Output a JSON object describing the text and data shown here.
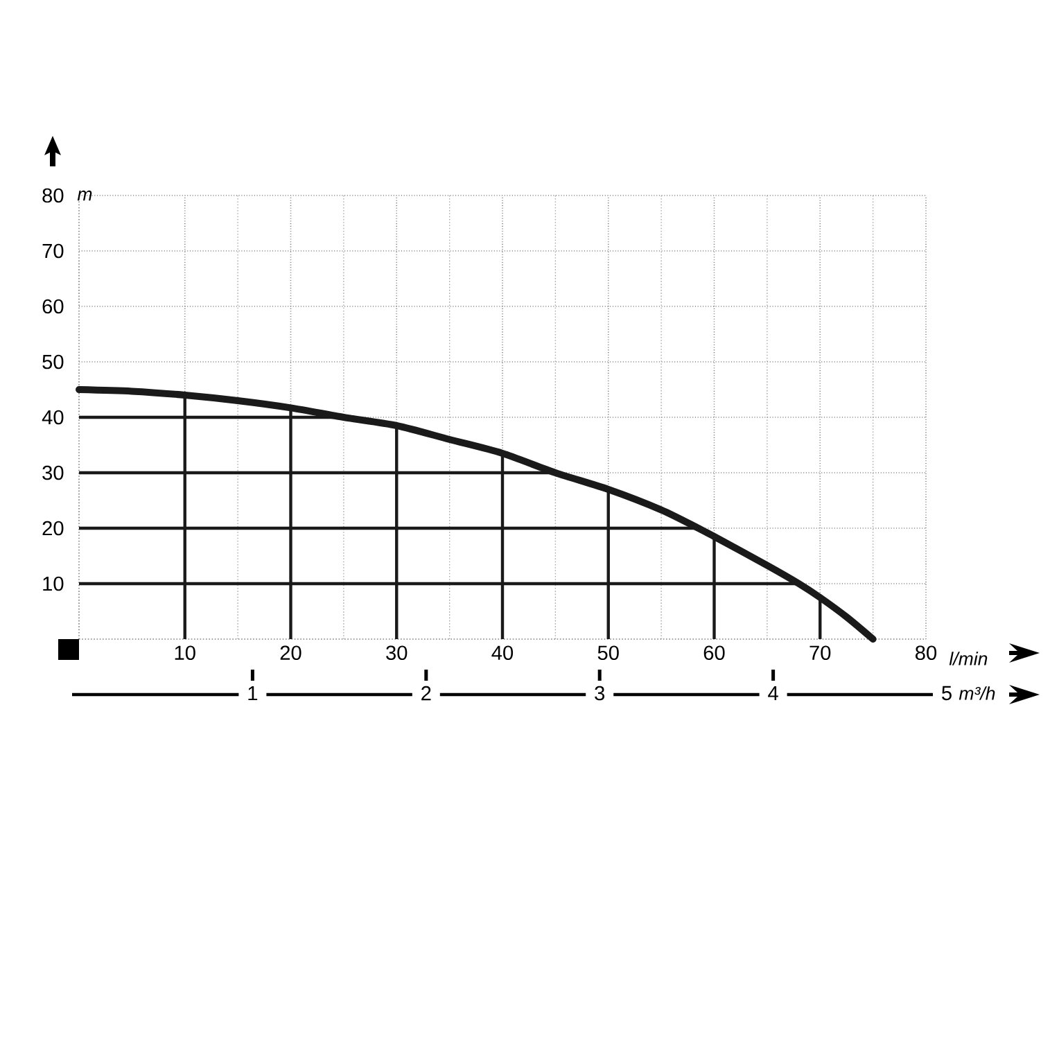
{
  "chart_data": {
    "type": "line",
    "xlabel": "l/min",
    "ylabel": "m",
    "x2label": "m³/h",
    "x": [
      0,
      5,
      10,
      15,
      20,
      25,
      30,
      35,
      40,
      45,
      50,
      55,
      58.5,
      60,
      65,
      68,
      70,
      72.5,
      75
    ],
    "series": [
      {
        "color": "#1a1a1a",
        "values": [
          45,
          44.7,
          44,
          43,
          41.7,
          40,
          38.5,
          36,
          33.5,
          30,
          27,
          23.3,
          20,
          18.5,
          13.3,
          10,
          7.5,
          4,
          0
        ]
      },
      {
        "color": "#1a1a1a",
        "x": [
          10,
          10
        ],
        "values": [
          0,
          44
        ]
      },
      {
        "color": "#1a1a1a",
        "x": [
          20,
          20
        ],
        "values": [
          0,
          41.7
        ]
      },
      {
        "color": "#1a1a1a",
        "x": [
          30,
          30
        ],
        "values": [
          0,
          38.5
        ]
      },
      {
        "color": "#1a1a1a",
        "x": [
          40,
          40
        ],
        "values": [
          0,
          33.5
        ]
      },
      {
        "color": "#1a1a1a",
        "x": [
          50,
          50
        ],
        "values": [
          0,
          27
        ]
      },
      {
        "color": "#1a1a1a",
        "x": [
          60,
          60
        ],
        "values": [
          0,
          18.5
        ]
      },
      {
        "color": "#1a1a1a",
        "x": [
          70,
          70
        ],
        "values": [
          0,
          7.5
        ]
      },
      {
        "color": "#1a1a1a",
        "x": [
          0,
          25
        ],
        "values": [
          40,
          40
        ]
      },
      {
        "color": "#1a1a1a",
        "x": [
          0,
          45
        ],
        "values": [
          30,
          30
        ]
      },
      {
        "color": "#1a1a1a",
        "x": [
          0,
          58.5
        ],
        "values": [
          20,
          20
        ]
      },
      {
        "color": "#1a1a1a",
        "x": [
          0,
          68
        ],
        "values": [
          10,
          10
        ]
      }
    ],
    "xlim": [
      0,
      80
    ],
    "ylim": [
      0,
      80
    ],
    "xticks": [
      10,
      20,
      30,
      40,
      50,
      60,
      70,
      80
    ],
    "yticks": [
      10,
      20,
      30,
      40,
      50,
      60,
      70,
      80
    ],
    "x2lim": [
      0,
      5
    ],
    "x2ticks": [
      1,
      2,
      3,
      4,
      5
    ],
    "grid": true
  }
}
